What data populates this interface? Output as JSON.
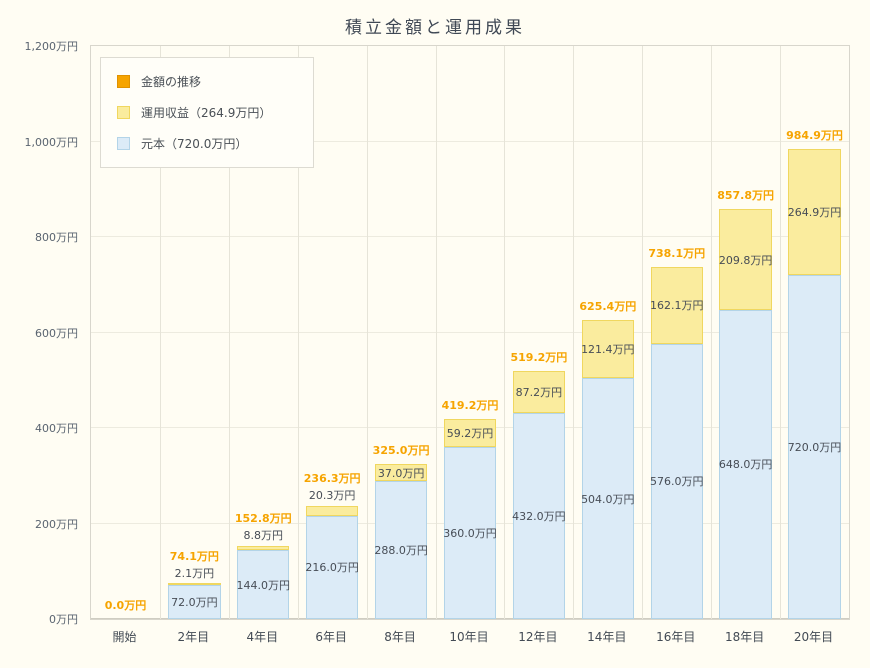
{
  "chart_data": {
    "type": "bar",
    "stacked": true,
    "title": "積立金額と運用成果",
    "categories": [
      "開始",
      "2年目",
      "4年目",
      "6年目",
      "8年目",
      "10年目",
      "12年目",
      "14年目",
      "16年目",
      "18年目",
      "20年目"
    ],
    "series": [
      {
        "name": "元本（720.0万円）",
        "color": "#dcebf7",
        "border": "#b3d4e8",
        "values": [
          0,
          72,
          144,
          216,
          288,
          360,
          432,
          504,
          576,
          648,
          720
        ],
        "labels": [
          "",
          "72.0万円",
          "144.0万円",
          "216.0万円",
          "288.0万円",
          "360.0万円",
          "432.0万円",
          "504.0万円",
          "576.0万円",
          "648.0万円",
          "720.0万円"
        ]
      },
      {
        "name": "運用収益（264.9万円）",
        "color": "#faec9e",
        "border": "#f0d75f",
        "values": [
          0,
          2.1,
          8.8,
          20.3,
          37.0,
          59.2,
          87.2,
          121.4,
          162.1,
          209.8,
          264.9
        ],
        "labels": [
          "",
          "2.1万円",
          "8.8万円",
          "20.3万円",
          "37.0万円",
          "59.2万円",
          "87.2万円",
          "121.4万円",
          "162.1万円",
          "209.8万円",
          "264.9万円"
        ]
      }
    ],
    "totals": {
      "name": "金額の推移",
      "color": "#f6a400",
      "labels": [
        "0.0万円",
        "74.1万円",
        "152.8万円",
        "236.3万円",
        "325.0万円",
        "419.2万円",
        "519.2万円",
        "625.4万円",
        "738.1万円",
        "857.8万円",
        "984.9万円"
      ]
    },
    "ylim": [
      0,
      1200
    ],
    "ytick_step": 200,
    "yticks": [
      "0万円",
      "200万円",
      "400万円",
      "600万円",
      "800万円",
      "1,000万円",
      "1,200万円"
    ],
    "legend": [
      {
        "key": "total",
        "label": "金額の推移",
        "fill": "#f6a400",
        "border": "#e09200"
      },
      {
        "key": "returns",
        "label": "運用収益（264.9万円）",
        "fill": "#faec9e",
        "border": "#f0d75f"
      },
      {
        "key": "principal",
        "label": "元本（720.0万円）",
        "fill": "#dcebf7",
        "border": "#b3d4e8"
      }
    ],
    "grid": true,
    "legend_position": "top-left"
  }
}
